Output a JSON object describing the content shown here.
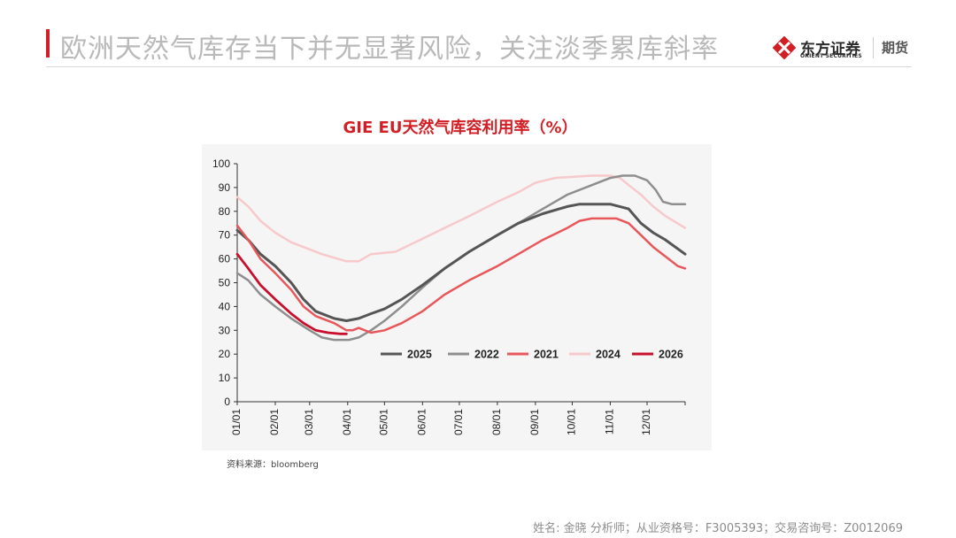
{
  "header": {
    "title": "欧洲天然气库存当下并无显著风险，关注淡季累库斜率",
    "logo_cn": "东方证券",
    "logo_en": "ORIENT SECURITIES",
    "logo_sub": "期货"
  },
  "colors": {
    "brand_red": "#d21f25",
    "s2025": "#555555",
    "s2022": "#8e8e8e",
    "s2021": "#e8575a",
    "s2024": "#f7c9ca",
    "s2026": "#c8102e"
  },
  "chart_data": {
    "type": "line",
    "title": "GIE EU天然气库容利用率（%）",
    "xlabel": "",
    "ylabel": "",
    "ylim": [
      0,
      100
    ],
    "yticks": [
      0,
      10,
      20,
      30,
      40,
      50,
      60,
      70,
      80,
      90,
      100
    ],
    "x_unit": "day of year",
    "xlim": [
      1,
      366
    ],
    "categories": [
      "01/01",
      "02/01",
      "03/01",
      "04/01",
      "05/01",
      "06/01",
      "07/01",
      "08/01",
      "09/01",
      "10/01",
      "11/01",
      "12/01"
    ],
    "category_days": [
      1,
      32,
      60,
      91,
      121,
      152,
      182,
      213,
      244,
      274,
      305,
      335
    ],
    "legend_position": "bottom-right",
    "series": [
      {
        "name": "2024",
        "x": [
          1,
          10,
          20,
          32,
          45,
          55,
          70,
          90,
          100,
          110,
          130,
          150,
          170,
          190,
          213,
          230,
          244,
          260,
          290,
          305,
          313,
          320,
          330,
          340,
          350,
          366
        ],
        "values": [
          86,
          82,
          76,
          71,
          67,
          65,
          62,
          59,
          59,
          62,
          63,
          68,
          73,
          78,
          84,
          88,
          92,
          94,
          95,
          95,
          94,
          91,
          87,
          82,
          78,
          73
        ]
      },
      {
        "name": "2022",
        "x": [
          1,
          10,
          20,
          32,
          45,
          60,
          70,
          80,
          92,
          100,
          110,
          121,
          135,
          152,
          170,
          190,
          213,
          230,
          250,
          270,
          290,
          305,
          315,
          325,
          335,
          342,
          348,
          355,
          366
        ],
        "values": [
          54,
          51,
          45,
          40,
          35,
          30,
          27,
          26,
          26,
          27,
          30,
          34,
          40,
          48,
          56,
          63,
          70,
          75,
          81,
          87,
          91,
          94,
          95,
          95,
          93,
          89,
          84,
          83,
          83
        ]
      },
      {
        "name": "2025",
        "x": [
          1,
          10,
          20,
          32,
          45,
          55,
          65,
          80,
          90,
          100,
          110,
          121,
          135,
          152,
          170,
          190,
          213,
          230,
          250,
          270,
          280,
          290,
          305,
          320,
          330,
          340,
          350,
          366
        ],
        "values": [
          72,
          68,
          62,
          57,
          50,
          43,
          38,
          35,
          34,
          35,
          37,
          39,
          43,
          49,
          56,
          63,
          70,
          75,
          79,
          82,
          83,
          83,
          83,
          81,
          75,
          71,
          68,
          62
        ]
      },
      {
        "name": "2021",
        "x": [
          1,
          10,
          20,
          32,
          45,
          55,
          65,
          80,
          90,
          95,
          100,
          110,
          121,
          135,
          152,
          170,
          190,
          213,
          230,
          250,
          270,
          280,
          290,
          300,
          310,
          320,
          330,
          340,
          350,
          360,
          366
        ],
        "values": [
          74,
          68,
          60,
          54,
          47,
          40,
          36,
          33,
          30,
          30,
          31,
          29,
          30,
          33,
          38,
          45,
          51,
          57,
          62,
          68,
          73,
          76,
          77,
          77,
          77,
          75,
          70,
          65,
          61,
          57,
          56
        ]
      },
      {
        "name": "2026",
        "x": [
          1,
          10,
          20,
          32,
          45,
          55,
          65,
          75,
          85,
          90
        ],
        "values": [
          62,
          56,
          49,
          43,
          37,
          33,
          30,
          29,
          28.5,
          28.5
        ]
      }
    ],
    "legend_order": [
      "2025",
      "2022",
      "2021",
      "2024",
      "2026"
    ]
  },
  "source": "资料来源：bloomberg",
  "footer": "姓名: 金晓 分析师；从业资格号：F3005393；交易咨询号：Z0012069"
}
